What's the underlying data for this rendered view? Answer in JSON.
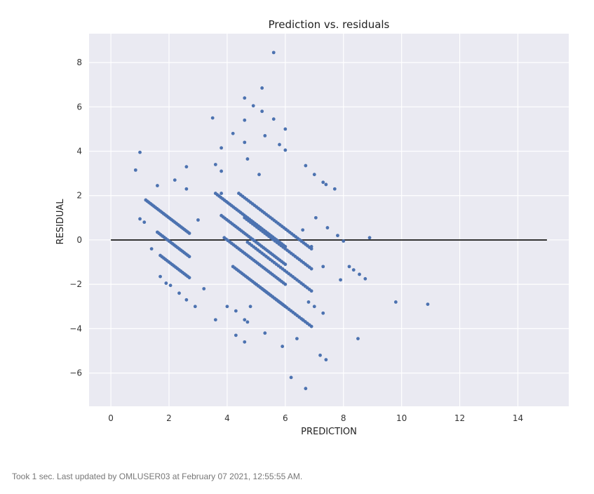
{
  "chart_data": {
    "type": "scatter",
    "title": "Prediction vs. residuals",
    "xlabel": "PREDICTION",
    "ylabel": "RESIDUAL",
    "xlim": [
      -0.75,
      15.75
    ],
    "ylim": [
      -7.5,
      9.3
    ],
    "xticks": [
      0,
      2,
      4,
      6,
      8,
      10,
      12,
      14
    ],
    "yticks": [
      -6,
      -4,
      -2,
      0,
      2,
      4,
      6,
      8
    ],
    "grid": true,
    "style": "seaborn-darkgrid",
    "colors": {
      "background": "#eaeaf2",
      "grid": "#ffffff",
      "points": "#4c72b0",
      "reference_line": "#333333"
    },
    "reference_line": {
      "x": [
        0,
        15
      ],
      "y": [
        0,
        0
      ]
    },
    "diagonal_bands": [
      {
        "x_start": 1.2,
        "x_end": 2.7,
        "n": 28,
        "intercept": 3.0
      },
      {
        "x_start": 1.6,
        "x_end": 2.7,
        "n": 20,
        "intercept": 1.95
      },
      {
        "x_start": 1.7,
        "x_end": 2.7,
        "n": 18,
        "intercept": 1.0
      },
      {
        "x_start": 3.6,
        "x_end": 6.0,
        "n": 40,
        "intercept": 5.7
      },
      {
        "x_start": 3.8,
        "x_end": 6.0,
        "n": 36,
        "intercept": 4.9
      },
      {
        "x_start": 3.9,
        "x_end": 6.0,
        "n": 34,
        "intercept": 4.0
      },
      {
        "x_start": 4.2,
        "x_end": 6.0,
        "n": 30,
        "intercept": 3.0
      },
      {
        "x_start": 4.4,
        "x_end": 6.9,
        "n": 38,
        "intercept": 6.5
      },
      {
        "x_start": 4.6,
        "x_end": 6.9,
        "n": 34,
        "intercept": 5.6
      },
      {
        "x_start": 4.7,
        "x_end": 6.9,
        "n": 32,
        "intercept": 4.6
      },
      {
        "x_start": 5.0,
        "x_end": 6.9,
        "n": 28,
        "intercept": 3.0
      }
    ],
    "scatter_points": [
      [
        0.85,
        3.15
      ],
      [
        1.0,
        3.95
      ],
      [
        1.0,
        0.95
      ],
      [
        1.15,
        0.8
      ],
      [
        1.4,
        -0.4
      ],
      [
        1.6,
        2.45
      ],
      [
        1.7,
        -1.65
      ],
      [
        1.9,
        -1.95
      ],
      [
        2.05,
        -2.05
      ],
      [
        2.2,
        2.7
      ],
      [
        2.35,
        -2.4
      ],
      [
        2.6,
        3.3
      ],
      [
        2.6,
        2.3
      ],
      [
        2.6,
        -2.7
      ],
      [
        2.9,
        -3.0
      ],
      [
        3.0,
        0.9
      ],
      [
        3.2,
        -2.2
      ],
      [
        3.5,
        5.5
      ],
      [
        3.6,
        3.4
      ],
      [
        3.6,
        -3.6
      ],
      [
        3.8,
        4.15
      ],
      [
        3.8,
        3.1
      ],
      [
        3.8,
        2.1
      ],
      [
        4.0,
        -3.0
      ],
      [
        4.2,
        4.8
      ],
      [
        4.3,
        -4.3
      ],
      [
        4.3,
        -3.2
      ],
      [
        4.6,
        6.4
      ],
      [
        4.6,
        5.4
      ],
      [
        4.6,
        4.4
      ],
      [
        4.6,
        -3.6
      ],
      [
        4.6,
        -4.6
      ],
      [
        4.7,
        -3.7
      ],
      [
        4.7,
        3.65
      ],
      [
        4.8,
        -3.0
      ],
      [
        4.9,
        6.05
      ],
      [
        5.1,
        2.95
      ],
      [
        5.2,
        6.85
      ],
      [
        5.2,
        5.8
      ],
      [
        5.3,
        4.7
      ],
      [
        5.3,
        -4.2
      ],
      [
        5.6,
        8.45
      ],
      [
        5.6,
        5.45
      ],
      [
        5.8,
        4.3
      ],
      [
        5.9,
        -4.8
      ],
      [
        6.0,
        5.0
      ],
      [
        6.0,
        4.05
      ],
      [
        6.2,
        -6.2
      ],
      [
        6.4,
        -4.45
      ],
      [
        6.6,
        -3.6
      ],
      [
        6.7,
        3.35
      ],
      [
        6.7,
        -6.7
      ],
      [
        6.8,
        -2.8
      ],
      [
        7.0,
        2.95
      ],
      [
        7.0,
        -3.0
      ],
      [
        7.2,
        -5.2
      ],
      [
        7.3,
        2.6
      ],
      [
        7.3,
        -3.3
      ],
      [
        7.4,
        2.5
      ],
      [
        7.4,
        -5.4
      ],
      [
        7.45,
        0.55
      ],
      [
        7.7,
        2.3
      ],
      [
        7.8,
        0.2
      ],
      [
        7.9,
        -1.8
      ],
      [
        8.0,
        -0.05
      ],
      [
        8.2,
        -1.2
      ],
      [
        8.35,
        -1.35
      ],
      [
        8.5,
        -4.45
      ],
      [
        8.55,
        -1.55
      ],
      [
        8.75,
        -1.75
      ],
      [
        8.9,
        0.1
      ],
      [
        9.8,
        -2.8
      ],
      [
        10.9,
        -2.9
      ],
      [
        7.05,
        1.0
      ],
      [
        6.9,
        -0.3
      ],
      [
        7.3,
        -1.2
      ],
      [
        6.6,
        0.45
      ]
    ]
  },
  "footer": {
    "status": "Took 1 sec. Last updated by OMLUSER03 at February 07 2021, 12:55:55 AM."
  }
}
